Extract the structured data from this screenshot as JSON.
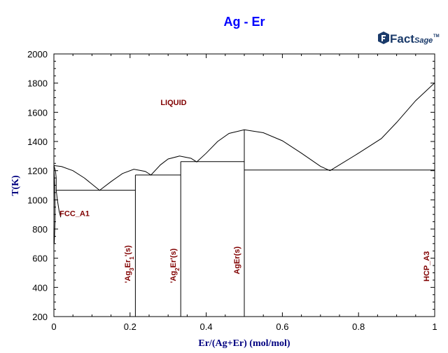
{
  "chart_data": {
    "type": "line",
    "title": "Ag - Er",
    "xlabel": "Er/(Ag+Er) (mol/mol)",
    "ylabel": "T(K)",
    "xlim": [
      0,
      1
    ],
    "ylim": [
      200,
      2000
    ],
    "x_ticks": [
      "0",
      "0.2",
      "0.4",
      "0.6",
      "0.8",
      "1"
    ],
    "x_tick_values": [
      0,
      0.2,
      0.4,
      0.6,
      0.8,
      1
    ],
    "y_ticks": [
      "200",
      "400",
      "600",
      "800",
      "1000",
      "1200",
      "1400",
      "1600",
      "1800",
      "2000"
    ],
    "y_tick_values": [
      200,
      400,
      600,
      800,
      1000,
      1200,
      1400,
      1600,
      1800,
      2000
    ],
    "colors": {
      "lines": "#000000",
      "title": "#0000ff",
      "labels": "#800000",
      "axis_labels": "#000080"
    },
    "series": [
      {
        "values": [
          [
            0,
            1235
          ],
          [
            0.02,
            1228
          ],
          [
            0.05,
            1200
          ],
          [
            0.08,
            1150
          ],
          [
            0.12,
            1065
          ],
          [
            0.15,
            1125
          ],
          [
            0.18,
            1180
          ],
          [
            0.21,
            1210
          ],
          [
            0.24,
            1195
          ],
          [
            0.255,
            1170
          ],
          [
            0.28,
            1240
          ],
          [
            0.3,
            1280
          ],
          [
            0.33,
            1300
          ],
          [
            0.36,
            1285
          ],
          [
            0.375,
            1260
          ],
          [
            0.4,
            1320
          ],
          [
            0.43,
            1400
          ],
          [
            0.46,
            1455
          ],
          [
            0.5,
            1480
          ],
          [
            0.55,
            1460
          ],
          [
            0.6,
            1405
          ],
          [
            0.65,
            1320
          ],
          [
            0.7,
            1230
          ],
          [
            0.725,
            1200
          ],
          [
            0.8,
            1320
          ],
          [
            0.86,
            1420
          ],
          [
            0.9,
            1530
          ],
          [
            0.95,
            1680
          ],
          [
            1.0,
            1802
          ]
        ]
      },
      {
        "values": [
          [
            0,
            1235
          ],
          [
            0.004,
            1200
          ],
          [
            0.006,
            1150
          ],
          [
            0.006,
            1066
          ]
        ]
      },
      {
        "values": [
          [
            0.006,
            1066
          ],
          [
            0.009,
            1000
          ],
          [
            0.014,
            920
          ],
          [
            0.018,
            880
          ]
        ]
      },
      {
        "values": [
          [
            0,
            1235
          ],
          [
            0.002,
            1100
          ],
          [
            0.003,
            960
          ],
          [
            0.003,
            860
          ],
          [
            0.002,
            780
          ],
          [
            0.001,
            700
          ]
        ]
      },
      {
        "values": [
          [
            0.005,
            1066
          ],
          [
            0.214,
            1066
          ]
        ]
      },
      {
        "values": [
          [
            0.214,
            1170
          ],
          [
            0.333,
            1170
          ]
        ]
      },
      {
        "values": [
          [
            0.333,
            1262
          ],
          [
            0.5,
            1262
          ]
        ]
      },
      {
        "values": [
          [
            0.5,
            1204
          ],
          [
            1.0,
            1204
          ]
        ]
      },
      {
        "values": [
          [
            0.214,
            1170
          ],
          [
            0.214,
            200
          ]
        ]
      },
      {
        "values": [
          [
            0.333,
            1262
          ],
          [
            0.333,
            200
          ]
        ]
      },
      {
        "values": [
          [
            0.5,
            1480
          ],
          [
            0.5,
            200
          ]
        ]
      }
    ],
    "annotations": [
      {
        "text": "LIQUID",
        "x": 0.28,
        "y": 1650,
        "rotate": 0
      },
      {
        "text": "FCC_A1",
        "x": 0.015,
        "y": 890,
        "rotate": 0
      },
      {
        "text": "'Ag",
        "sub": "3",
        "rest": "Er",
        "sub2": "1",
        "tail": "'(s)",
        "x": 0.2,
        "y": 430,
        "rotate": -90
      },
      {
        "text": "'Ag",
        "sub": "2",
        "rest": "Er'(s)",
        "x": 0.32,
        "y": 430,
        "rotate": -90
      },
      {
        "text": "AgEr(s)",
        "x": 0.487,
        "y": 490,
        "rotate": -90
      },
      {
        "text": "HCP_A3",
        "x": 0.985,
        "y": 440,
        "rotate": -90
      }
    ],
    "grid": false,
    "legend": "none"
  },
  "logo": {
    "brand": "Fact",
    "suffix": "Sage",
    "mark": "TM"
  }
}
